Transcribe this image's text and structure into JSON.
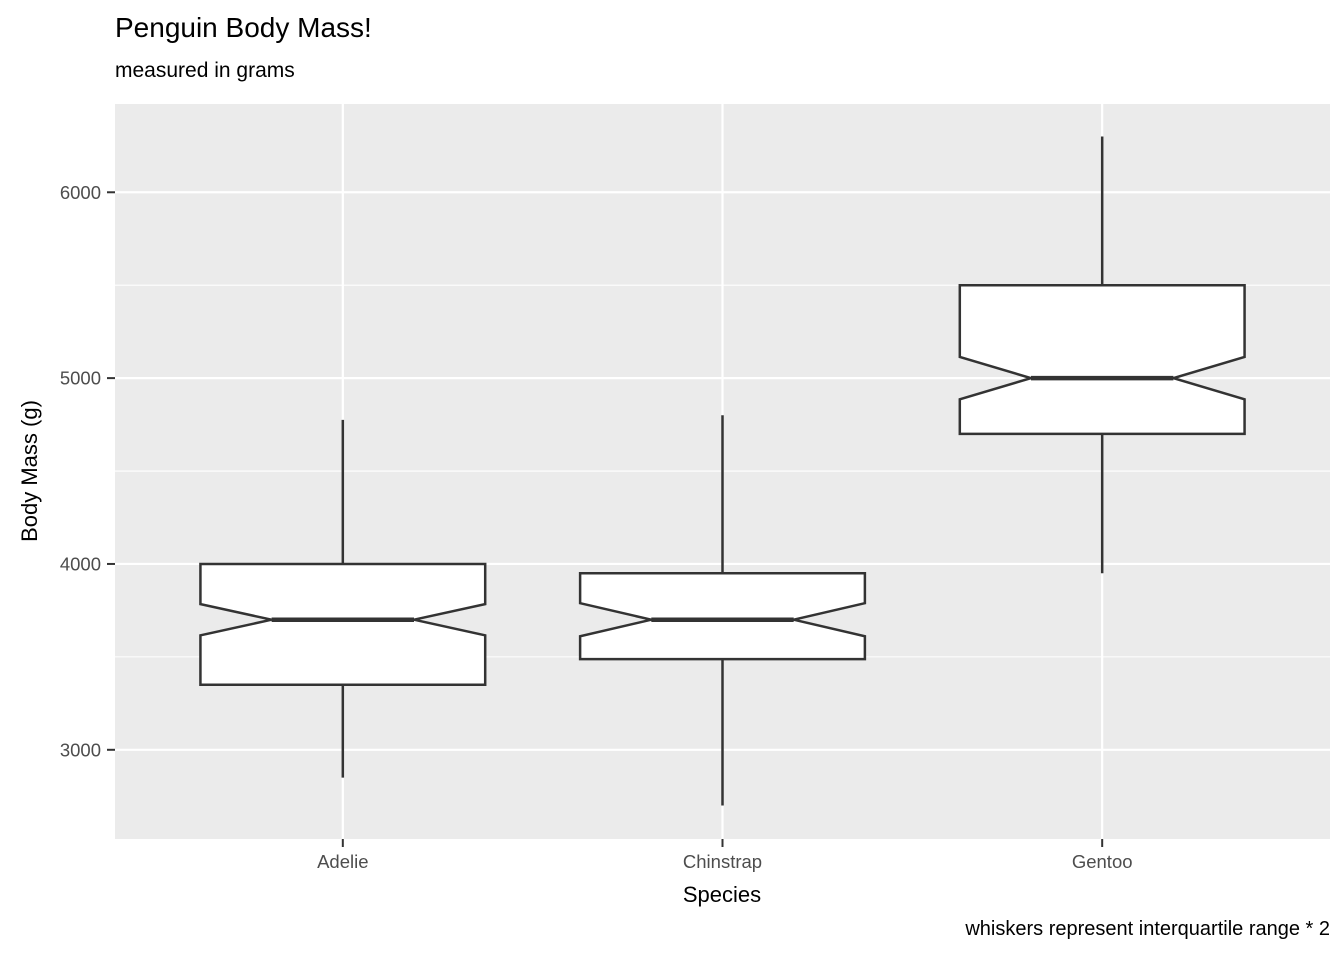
{
  "chart_data": {
    "type": "boxplot",
    "title": "Penguin Body Mass!",
    "subtitle": "measured in grams",
    "caption": "whiskers represent interquartile range * 2",
    "xlabel": "Species",
    "ylabel": "Body Mass (g)",
    "categories": [
      "Adelie",
      "Chinstrap",
      "Gentoo"
    ],
    "series": [
      {
        "name": "Adelie",
        "whisker_low": 2850,
        "q1": 3350,
        "median": 3700,
        "q3": 4000,
        "whisker_high": 4775,
        "notch_low": 3616,
        "notch_high": 3784
      },
      {
        "name": "Chinstrap",
        "whisker_low": 2700,
        "q1": 3488,
        "median": 3700,
        "q3": 3950,
        "whisker_high": 4800,
        "notch_low": 3611,
        "notch_high": 3789
      },
      {
        "name": "Gentoo",
        "whisker_low": 3950,
        "q1": 4700,
        "median": 5000,
        "q3": 5500,
        "whisker_high": 6300,
        "notch_low": 4886,
        "notch_high": 5114
      }
    ],
    "notched": true,
    "outliers": [],
    "ylim": [
      2520,
      6475
    ],
    "y_ticks": [
      3000,
      4000,
      5000,
      6000
    ],
    "y_minor_ticks": [
      3500,
      4500,
      5500
    ],
    "grid": true,
    "legend": "none",
    "colors": {
      "panel_background": "#EBEBEB",
      "gridline": "#FFFFFF",
      "box_fill": "#FFFFFF",
      "box_stroke": "#333333",
      "tick_mark": "#333333",
      "tick_label": "#4D4D4D",
      "text": "#000000"
    }
  }
}
